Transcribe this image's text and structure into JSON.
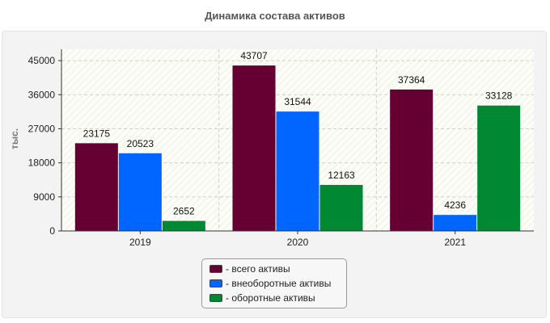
{
  "chart_data": {
    "type": "bar",
    "title": "Динамика состава активов",
    "ylabel": "тыс.",
    "xlabel": "",
    "categories": [
      "2019",
      "2020",
      "2021"
    ],
    "ylim": [
      0,
      48000
    ],
    "yticks": [
      0,
      9000,
      18000,
      27000,
      36000,
      45000
    ],
    "grid": true,
    "legend_position": "bottom",
    "series": [
      {
        "name": "- всего активы",
        "values": [
          23175,
          43707,
          37364
        ],
        "color": "#660033"
      },
      {
        "name": "- внеоборотные активы",
        "values": [
          20523,
          31544,
          4236
        ],
        "color": "#0066ff"
      },
      {
        "name": "- оборотные активы",
        "values": [
          2652,
          12163,
          33128
        ],
        "color": "#008833"
      }
    ]
  }
}
